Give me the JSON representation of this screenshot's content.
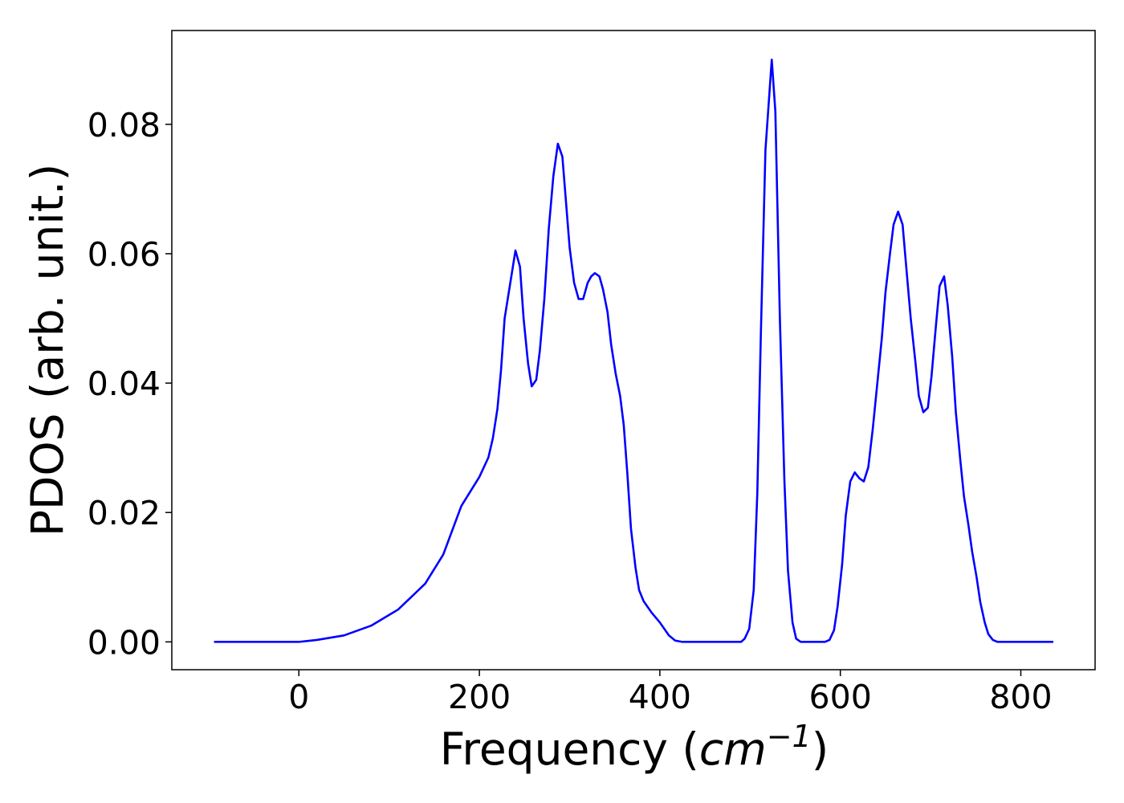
{
  "chart_data": {
    "type": "line",
    "xlabel": [
      "Frequency (",
      "cm",
      "−1",
      ")"
    ],
    "ylabel": "PDOS (arb. unit.)",
    "xlim": [
      -140.8,
      882.3
    ],
    "ylim": [
      -0.0043,
      0.0945
    ],
    "xticks": [
      0,
      200,
      400,
      600,
      800
    ],
    "yticks": [
      {
        "value": 0,
        "label": "0.00"
      },
      {
        "value": 0.02,
        "label": "0.02"
      },
      {
        "value": 0.04,
        "label": "0.04"
      },
      {
        "value": 0.06,
        "label": "0.06"
      },
      {
        "value": 0.08,
        "label": "0.08"
      }
    ],
    "grid": false,
    "series": [
      {
        "color": "#0000ff",
        "x": [
          -94,
          0,
          20,
          50,
          80,
          110,
          140,
          160,
          180,
          200,
          210,
          215,
          220,
          224,
          228,
          236,
          240,
          245,
          249,
          254,
          258,
          263,
          267,
          272,
          277,
          282,
          287,
          292,
          296,
          300,
          305,
          310,
          315,
          320,
          324,
          328,
          333,
          337,
          342,
          346,
          351,
          356,
          360,
          364,
          368,
          373,
          377,
          382,
          391,
          400,
          410,
          417,
          425,
          490,
          494,
          499,
          504,
          508,
          512,
          517,
          524,
          528,
          533,
          538,
          542,
          547,
          551,
          556,
          583,
          588,
          593,
          597,
          602,
          606,
          611,
          616,
          621,
          626,
          631,
          636,
          641,
          646,
          650,
          655,
          659,
          664,
          669,
          673,
          678,
          683,
          687,
          692,
          697,
          701,
          706,
          710,
          715,
          719,
          724,
          728,
          733,
          737,
          742,
          746,
          751,
          755,
          760,
          764,
          769,
          774,
          836
        ],
        "values": [
          0,
          0,
          0.0003,
          0.001,
          0.0025,
          0.005,
          0.009,
          0.0135,
          0.021,
          0.0255,
          0.0285,
          0.0315,
          0.036,
          0.042,
          0.05,
          0.057,
          0.0605,
          0.058,
          0.05,
          0.043,
          0.0395,
          0.0405,
          0.045,
          0.053,
          0.064,
          0.072,
          0.077,
          0.075,
          0.068,
          0.061,
          0.0555,
          0.053,
          0.053,
          0.0555,
          0.0565,
          0.057,
          0.0565,
          0.0545,
          0.051,
          0.046,
          0.0415,
          0.038,
          0.0335,
          0.026,
          0.0175,
          0.0115,
          0.008,
          0.0063,
          0.0045,
          0.003,
          0.001,
          0.0002,
          0,
          0,
          0.0005,
          0.002,
          0.008,
          0.023,
          0.048,
          0.076,
          0.09,
          0.082,
          0.05,
          0.025,
          0.011,
          0.003,
          0.0005,
          0,
          0,
          0.0003,
          0.0018,
          0.0055,
          0.012,
          0.0195,
          0.0248,
          0.0262,
          0.0253,
          0.0248,
          0.027,
          0.033,
          0.04,
          0.047,
          0.054,
          0.06,
          0.0645,
          0.0665,
          0.0645,
          0.058,
          0.05,
          0.0435,
          0.038,
          0.0355,
          0.0362,
          0.041,
          0.049,
          0.055,
          0.0565,
          0.052,
          0.044,
          0.0355,
          0.028,
          0.0225,
          0.018,
          0.014,
          0.01,
          0.0062,
          0.003,
          0.0012,
          0.0003,
          0,
          0
        ]
      }
    ]
  }
}
